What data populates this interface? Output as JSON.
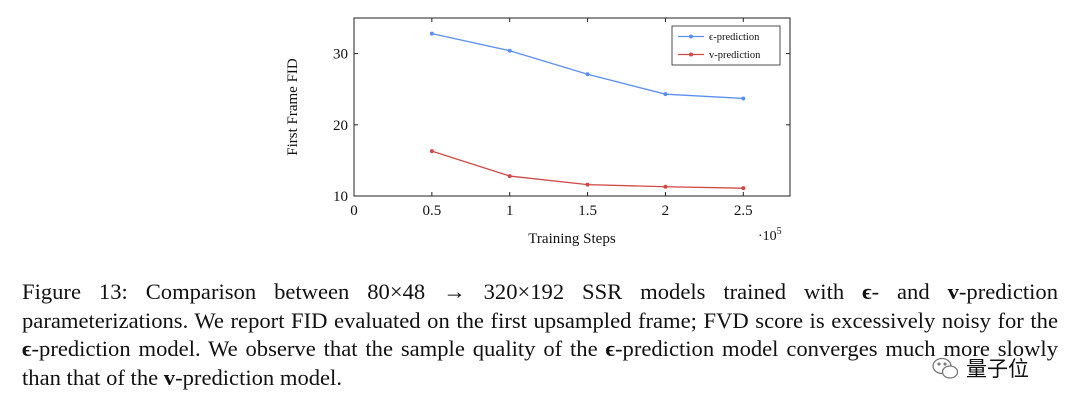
{
  "chart_data": {
    "type": "line",
    "title": "",
    "xlabel": "Training Steps",
    "ylabel": "First Frame FID",
    "x_multiplier": "·10",
    "x_multiplier_exp": "5",
    "x": [
      0.5,
      1,
      1.5,
      2,
      2.5
    ],
    "x_ticks": [
      "0",
      "0.5",
      "1",
      "1.5",
      "2",
      "2.5"
    ],
    "y_ticks": [
      "10",
      "20",
      "30"
    ],
    "xlim": [
      0,
      2.8
    ],
    "ylim": [
      10,
      35
    ],
    "grid": false,
    "legend_position": "top-right",
    "series": [
      {
        "name": "ϵ-prediction",
        "values": [
          32.8,
          30.4,
          27.1,
          24.3,
          23.7
        ],
        "color": "#5b8ff2"
      },
      {
        "name": "v-prediction",
        "values": [
          16.3,
          12.8,
          11.6,
          11.3,
          11.1
        ],
        "color": "#cf4a45"
      }
    ]
  },
  "caption": {
    "label": "Figure 13:",
    "part1": " Comparison between 80×48 → 320×192 SSR models trained with ",
    "eps1": "ϵ",
    "part2": "- and ",
    "v1": "v",
    "part3": "-prediction parameterizations. We report FID evaluated on the first upsampled frame; FVD score is excessively noisy for the ",
    "eps2": "ϵ",
    "part4": "-prediction model.  We observe that the sample quality of the ",
    "eps3": "ϵ",
    "part5": "-prediction model converges much more slowly than that of the ",
    "v2": "v",
    "part6": "-prediction model."
  },
  "watermark": {
    "text": "量子位",
    "color": "#555555"
  }
}
